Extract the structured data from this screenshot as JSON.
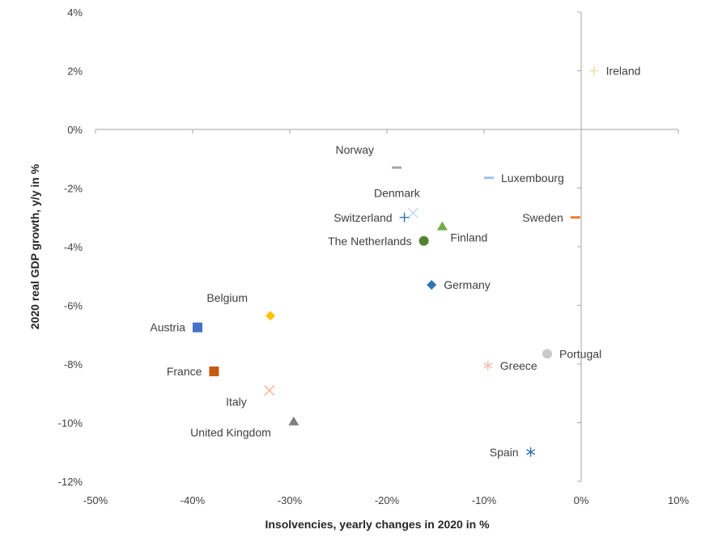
{
  "chart_data": {
    "type": "scatter",
    "title": "",
    "xlabel": "Insolvencies, yearly changes in 2020 in %",
    "ylabel": "2020 real GDP growth, y/y in %",
    "xlim": [
      -50,
      10
    ],
    "ylim": [
      -12,
      4
    ],
    "x_ticks": [
      -50,
      -40,
      -30,
      -20,
      -10,
      0,
      10
    ],
    "y_ticks": [
      -12,
      -10,
      -8,
      -6,
      -4,
      -2,
      0,
      2,
      4
    ],
    "x_tick_labels": [
      "-50%",
      "-40%",
      "-30%",
      "-20%",
      "-10%",
      "0%",
      "10%"
    ],
    "y_tick_labels": [
      "-12%",
      "-10%",
      "-8%",
      "-6%",
      "-4%",
      "-2%",
      "0%",
      "2%",
      "4%"
    ],
    "grid": false,
    "legend": "none",
    "points": [
      {
        "label": "Ireland",
        "x": 1.3,
        "y": 2.0,
        "marker": "plus",
        "color": "#f7d9a8",
        "label_pos": "right"
      },
      {
        "label": "Norway",
        "x": -19.0,
        "y": -1.3,
        "marker": "dash",
        "color": "#a6a6a6",
        "label_pos": "upper-left"
      },
      {
        "label": "Luxembourg",
        "x": -9.5,
        "y": -1.65,
        "marker": "dash",
        "color": "#9dc3e6",
        "label_pos": "right"
      },
      {
        "label": "Denmark",
        "x": -17.3,
        "y": -2.85,
        "marker": "x",
        "color": "#bdd7ee",
        "label_pos": "above"
      },
      {
        "label": "Switzerland",
        "x": -18.2,
        "y": -3.0,
        "marker": "plus",
        "color": "#2e75b6",
        "label_pos": "left"
      },
      {
        "label": "Sweden",
        "x": -0.6,
        "y": -3.0,
        "marker": "dash",
        "color": "#ed7d31",
        "label_pos": "left"
      },
      {
        "label": "Finland",
        "x": -14.3,
        "y": -3.3,
        "marker": "triangle",
        "color": "#70ad47",
        "label_pos": "lower-right"
      },
      {
        "label": "The Netherlands",
        "x": -16.2,
        "y": -3.8,
        "marker": "circle",
        "color": "#548235",
        "label_pos": "left"
      },
      {
        "label": "Germany",
        "x": -15.4,
        "y": -5.3,
        "marker": "diamond",
        "color": "#2e75b6",
        "label_pos": "right"
      },
      {
        "label": "Belgium",
        "x": -32.0,
        "y": -6.35,
        "marker": "diamond",
        "color": "#ffc000",
        "label_pos": "upper-left"
      },
      {
        "label": "Austria",
        "x": -39.5,
        "y": -6.75,
        "marker": "square",
        "color": "#4472c4",
        "label_pos": "left"
      },
      {
        "label": "Portugal",
        "x": -3.5,
        "y": -7.65,
        "marker": "circle",
        "color": "#c9c9c9",
        "label_pos": "right"
      },
      {
        "label": "Greece",
        "x": -9.6,
        "y": -8.05,
        "marker": "asterisk",
        "color": "#f4b6a6",
        "label_pos": "right"
      },
      {
        "label": "France",
        "x": -37.8,
        "y": -8.25,
        "marker": "square",
        "color": "#c55a11",
        "label_pos": "left"
      },
      {
        "label": "Italy",
        "x": -32.1,
        "y": -8.9,
        "marker": "x",
        "color": "#f4b183",
        "label_pos": "lower-left"
      },
      {
        "label": "United Kingdom",
        "x": -29.6,
        "y": -9.95,
        "marker": "triangle",
        "color": "#7f7f7f",
        "label_pos": "lower-left"
      },
      {
        "label": "Spain",
        "x": -5.2,
        "y": -11.0,
        "marker": "asterisk",
        "color": "#2e75b6",
        "label_pos": "left"
      }
    ]
  }
}
